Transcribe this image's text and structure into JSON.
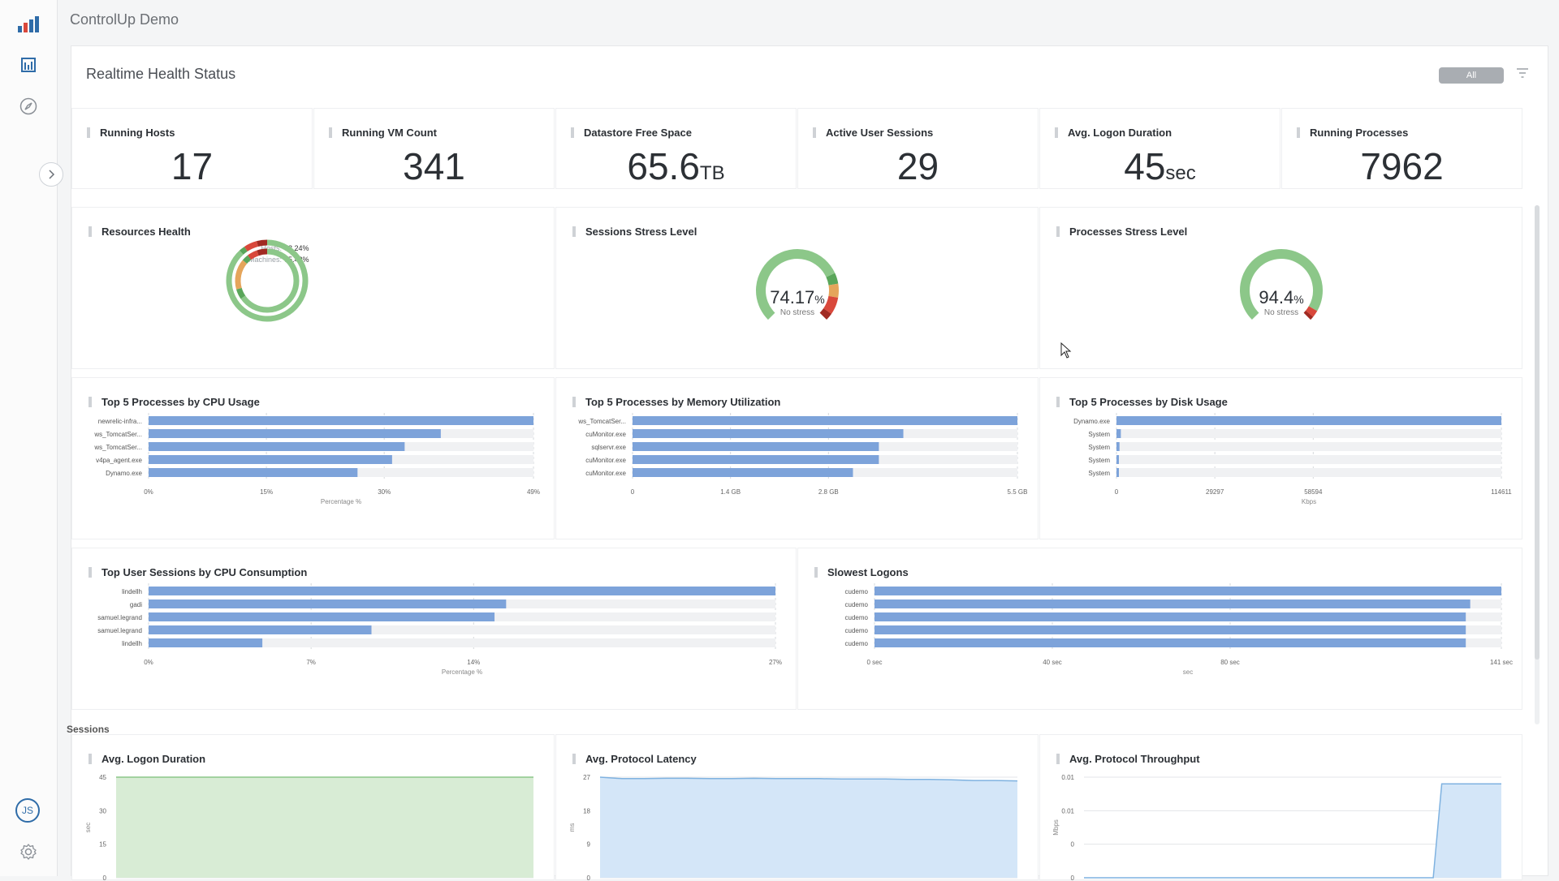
{
  "app": {
    "title": "ControlUp Demo",
    "user_initials": "JS"
  },
  "page": {
    "title": "Realtime Health Status",
    "filter_toggle_label": "All"
  },
  "kpis": [
    {
      "title": "Running Hosts",
      "value": "17",
      "unit": ""
    },
    {
      "title": "Running VM Count",
      "value": "341",
      "unit": ""
    },
    {
      "title": "Datastore Free Space",
      "value": "65.6",
      "unit": "TB"
    },
    {
      "title": "Active User Sessions",
      "value": "29",
      "unit": ""
    },
    {
      "title": "Avg. Logon Duration",
      "value": "45",
      "unit": "sec"
    },
    {
      "title": "Running Processes",
      "value": "7962",
      "unit": ""
    }
  ],
  "resources_health": {
    "title": "Resources Health",
    "hosts_label": "Hosts:",
    "hosts_value": "88.24%",
    "hosts_pct": 88.24,
    "machines_label": "Machines:",
    "machines_value": "65.42%",
    "machines_pct": 65.42
  },
  "sessions_stress": {
    "title": "Sessions Stress Level",
    "value": "74.17",
    "unit": "%",
    "status": "No stress",
    "pct": 74.17
  },
  "processes_stress": {
    "title": "Processes Stress Level",
    "value": "94.4",
    "unit": "%",
    "status": "No stress",
    "pct": 94.4
  },
  "sections": {
    "sessions_label": "Sessions"
  },
  "colors": {
    "bar": "#7da3da",
    "track": "#f0f1f3",
    "ok": "#8cc789",
    "ok_dark": "#5aa65a",
    "warn": "#e5a55b",
    "bad": "#d9483b",
    "bad_dark": "#a12a22",
    "area_green": "#d8ecd5",
    "area_blue": "#d4e6f8"
  },
  "chart_data": [
    {
      "id": "cpu",
      "type": "bar",
      "title": "Top 5 Processes by CPU Usage",
      "categories": [
        "newrelic-infra...",
        "ws_TomcatSer...",
        "ws_TomcatSer...",
        "v4pa_agent.exe",
        "Dynamo.exe"
      ],
      "values": [
        49,
        37.2,
        32.6,
        31,
        26.6
      ],
      "max": 49,
      "ticks": [
        0,
        15,
        30,
        49
      ],
      "tick_labels": [
        "0%",
        "15%",
        "30%",
        "49%"
      ],
      "xlabel": "Percentage %"
    },
    {
      "id": "mem",
      "type": "bar",
      "title": "Top 5 Processes by Memory Utilization",
      "categories": [
        "ws_TomcatSer...",
        "cuMonitor.exe",
        "sqlservr.exe",
        "cuMonitor.exe",
        "cuMonitor.exe"
      ],
      "values": [
        5.5,
        3.87,
        3.52,
        3.52,
        3.15
      ],
      "max": 5.5,
      "ticks": [
        0,
        1.4,
        2.8,
        5.5
      ],
      "tick_labels": [
        "0",
        "1.4 GB",
        "2.8 GB",
        "5.5 GB"
      ],
      "xlabel": ""
    },
    {
      "id": "disk",
      "type": "bar",
      "title": "Top 5 Processes by Disk Usage",
      "categories": [
        "Dynamo.exe",
        "System",
        "System",
        "System",
        "System"
      ],
      "values": [
        114611,
        1300,
        900,
        600,
        300
      ],
      "max": 114611,
      "ticks": [
        0,
        29297,
        58594,
        114611
      ],
      "tick_labels": [
        "0",
        "29297",
        "58594",
        "114611"
      ],
      "xlabel": "Kbps"
    },
    {
      "id": "usercpu",
      "type": "bar",
      "title": "Top User Sessions by CPU Consumption",
      "categories": [
        "lindellh",
        "gadi",
        "samuel.legrand",
        "samuel.legrand",
        "lindellh"
      ],
      "values": [
        27,
        15.4,
        14.9,
        9.6,
        4.9
      ],
      "max": 27,
      "ticks": [
        0,
        7,
        14,
        27
      ],
      "tick_labels": [
        "0%",
        "7%",
        "14%",
        "27%"
      ],
      "xlabel": "Percentage %"
    },
    {
      "id": "logons",
      "type": "bar",
      "title": "Slowest Logons",
      "categories": [
        "cudemo",
        "cudemo",
        "cudemo",
        "cudemo",
        "cudemo"
      ],
      "values": [
        141,
        134,
        133,
        133,
        133
      ],
      "max": 141,
      "ticks": [
        0,
        40,
        80,
        141
      ],
      "tick_labels": [
        "0 sec",
        "40 sec",
        "80 sec",
        "141 sec"
      ],
      "xlabel": "sec"
    },
    {
      "id": "alogon",
      "type": "area",
      "title": "Avg. Logon Duration",
      "ylabel": "sec",
      "ylim": [
        0,
        45
      ],
      "ticks": [
        0,
        15,
        30,
        45
      ],
      "tick_labels": [
        "0",
        "15",
        "30",
        "45"
      ],
      "values": [
        45,
        45,
        45,
        45,
        45,
        45,
        45,
        45,
        45,
        45,
        45,
        45,
        45,
        45,
        45,
        45,
        45,
        45,
        45,
        45
      ]
    },
    {
      "id": "latency",
      "type": "area",
      "title": "Avg. Protocol Latency",
      "ylabel": "ms",
      "ylim": [
        0,
        27
      ],
      "ticks": [
        0,
        9,
        18,
        27
      ],
      "tick_labels": [
        "0",
        "9",
        "18",
        "27"
      ],
      "values": [
        27,
        26.6,
        26.6,
        26.7,
        26.7,
        26.6,
        26.6,
        26.7,
        26.6,
        26.6,
        26.6,
        26.5,
        26.5,
        26.5,
        26.4,
        26.4,
        26.3,
        26.1,
        26.1,
        26.0
      ]
    },
    {
      "id": "throughput",
      "type": "area",
      "title": "Avg. Protocol Throughput",
      "ylabel": "Mbps",
      "ylim": [
        0,
        0.015
      ],
      "ticks": [
        0,
        0.005,
        0.01,
        0.015
      ],
      "tick_labels": [
        "0",
        "0",
        "0.01",
        "0.01"
      ],
      "values": [
        0,
        0,
        0,
        0,
        0,
        0,
        0,
        0,
        0,
        0,
        0,
        0,
        0,
        0,
        0,
        0,
        0,
        0,
        0,
        0,
        0,
        0,
        0,
        0,
        0,
        0,
        0,
        0,
        0,
        0,
        0,
        0,
        0,
        0,
        0,
        0,
        0,
        0,
        0,
        0,
        0,
        0,
        0.014,
        0.014,
        0.014,
        0.014,
        0.014,
        0.014,
        0.014,
        0.014
      ]
    }
  ]
}
